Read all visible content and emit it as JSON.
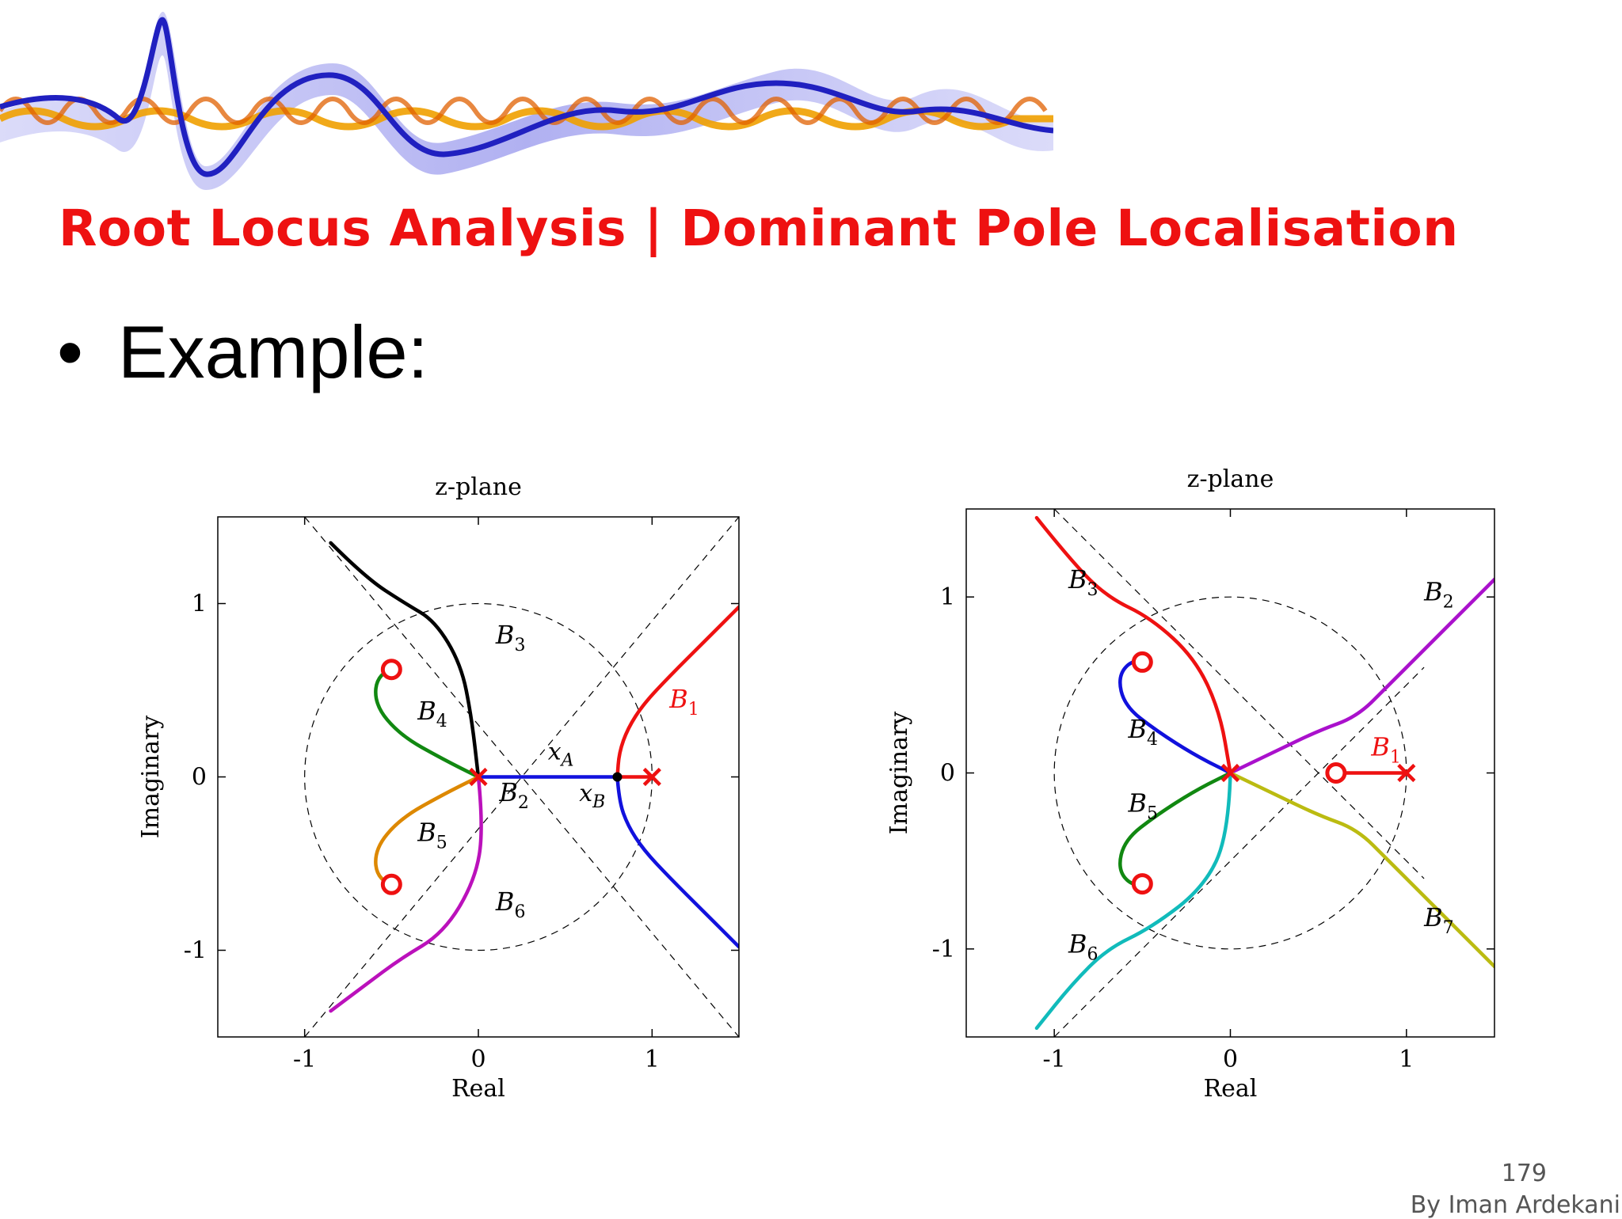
{
  "slide": {
    "title": "Root Locus Analysis | Dominant Pole Localisation",
    "bullet": "Example:",
    "bullet_symbol": "•",
    "page_number": "179",
    "author": "By Iman Ardekani",
    "title_color": "#ee1111",
    "banner_icon": "waveform-banner"
  },
  "chart_data": [
    {
      "type": "line",
      "title": "z-plane",
      "xlabel": "Real",
      "ylabel": "Imaginary",
      "xlim": [
        -1.5,
        1.5
      ],
      "ylim": [
        -1.5,
        1.5
      ],
      "xticks": [
        -1,
        0,
        1
      ],
      "yticks": [
        -1,
        0,
        1
      ],
      "xtick_labels": [
        "-1",
        "0",
        "1"
      ],
      "ytick_labels": [
        "-1",
        "0",
        "1"
      ],
      "unit_circle": true,
      "poles": [
        [
          0,
          0
        ],
        [
          1,
          0
        ]
      ],
      "zeros": [
        [
          -0.5,
          0.62
        ],
        [
          -0.5,
          -0.62
        ]
      ],
      "points": [
        [
          0.8,
          0
        ]
      ],
      "asymptotes": [
        {
          "from": [
            -1.0,
            1.5
          ],
          "to": [
            1.5,
            -1.5
          ]
        },
        {
          "from": [
            -1.0,
            -1.5
          ],
          "to": [
            1.5,
            1.5
          ]
        }
      ],
      "series": [
        {
          "name": "B1",
          "color": "#ee1111",
          "points": [
            [
              1.5,
              0.98
            ],
            [
              1.3,
              0.78
            ],
            [
              1.1,
              0.58
            ],
            [
              0.95,
              0.42
            ],
            [
              0.86,
              0.28
            ],
            [
              0.81,
              0.14
            ],
            [
              0.8,
              0
            ]
          ]
        },
        {
          "name": "B1",
          "color": "#ee1111",
          "points": [
            [
              0.8,
              0
            ],
            [
              1.0,
              0
            ]
          ]
        },
        {
          "name": "B2",
          "color": "#1111dd",
          "points": [
            [
              0,
              0
            ],
            [
              0.8,
              0
            ]
          ]
        },
        {
          "name": "",
          "color": "#1111dd",
          "points": [
            [
              0.8,
              0
            ],
            [
              0.81,
              -0.14
            ],
            [
              0.86,
              -0.28
            ],
            [
              0.95,
              -0.42
            ],
            [
              1.1,
              -0.58
            ],
            [
              1.3,
              -0.78
            ],
            [
              1.5,
              -0.98
            ]
          ]
        },
        {
          "name": "B3",
          "color": "#000000",
          "points": [
            [
              -0.85,
              1.35
            ],
            [
              -0.65,
              1.15
            ],
            [
              -0.42,
              1.0
            ],
            [
              -0.25,
              0.9
            ],
            [
              -0.1,
              0.65
            ],
            [
              -0.04,
              0.35
            ],
            [
              0,
              0
            ]
          ]
        },
        {
          "name": "B4",
          "color": "#118811",
          "points": [
            [
              -0.48,
              0.63
            ],
            [
              -0.58,
              0.6
            ],
            [
              -0.6,
              0.42
            ],
            [
              -0.45,
              0.24
            ],
            [
              -0.2,
              0.1
            ],
            [
              0,
              0
            ]
          ]
        },
        {
          "name": "B5",
          "color": "#dd8800",
          "points": [
            [
              -0.48,
              -0.63
            ],
            [
              -0.58,
              -0.6
            ],
            [
              -0.6,
              -0.42
            ],
            [
              -0.45,
              -0.24
            ],
            [
              -0.2,
              -0.1
            ],
            [
              0,
              0
            ]
          ]
        },
        {
          "name": "B6",
          "color": "#bb11bb",
          "points": [
            [
              0,
              0
            ],
            [
              0.03,
              -0.3
            ],
            [
              -0.02,
              -0.6
            ],
            [
              -0.2,
              -0.9
            ],
            [
              -0.45,
              -1.05
            ],
            [
              -0.65,
              -1.2
            ],
            [
              -0.85,
              -1.35
            ]
          ]
        }
      ],
      "annotations": [
        "x",
        "A",
        "x",
        "B"
      ],
      "branch_labels": [
        {
          "text": "B",
          "sub": "3",
          "x": 0.1,
          "y": 0.77,
          "color": "#000000"
        },
        {
          "text": "B",
          "sub": "4",
          "x": -0.35,
          "y": 0.33,
          "color": "#000000"
        },
        {
          "text": "B",
          "sub": "2",
          "x": 0.12,
          "y": -0.14,
          "color": "#000000"
        },
        {
          "text": "B",
          "sub": "5",
          "x": -0.35,
          "y": -0.37,
          "color": "#000000"
        },
        {
          "text": "B",
          "sub": "6",
          "x": 0.1,
          "y": -0.77,
          "color": "#000000"
        },
        {
          "text": "B",
          "sub": "1",
          "x": 1.1,
          "y": 0.4,
          "color": "#ee1111"
        }
      ],
      "grid": false
    },
    {
      "type": "line",
      "title": "z-plane",
      "xlabel": "Real",
      "ylabel": "Imaginary",
      "xlim": [
        -1.5,
        1.5
      ],
      "ylim": [
        -1.5,
        1.5
      ],
      "xticks": [
        -1,
        0,
        1
      ],
      "yticks": [
        -1,
        0,
        1
      ],
      "xtick_labels": [
        "-1",
        "0",
        "1"
      ],
      "ytick_labels": [
        "-1",
        "0",
        "1"
      ],
      "unit_circle": true,
      "poles": [
        [
          0,
          0
        ],
        [
          1,
          0
        ]
      ],
      "zeros": [
        [
          -0.5,
          0.63
        ],
        [
          -0.5,
          -0.63
        ],
        [
          0.6,
          0
        ]
      ],
      "points": [],
      "asymptotes": [
        {
          "from": [
            -1.0,
            1.5
          ],
          "to": [
            1.1,
            -0.6
          ]
        },
        {
          "from": [
            -1.0,
            -1.5
          ],
          "to": [
            1.1,
            0.6
          ]
        }
      ],
      "series": [
        {
          "name": "B1",
          "color": "#ee1111",
          "points": [
            [
              0.6,
              0
            ],
            [
              1.0,
              0
            ]
          ]
        },
        {
          "name": "B2",
          "color": "#aa11cc",
          "points": [
            [
              0,
              0
            ],
            [
              0.25,
              0.12
            ],
            [
              0.5,
              0.24
            ],
            [
              0.72,
              0.32
            ],
            [
              0.9,
              0.5
            ],
            [
              1.1,
              0.7
            ],
            [
              1.3,
              0.9
            ],
            [
              1.5,
              1.1
            ]
          ]
        },
        {
          "name": "B3",
          "color": "#ee1111",
          "points": [
            [
              -1.1,
              1.45
            ],
            [
              -0.9,
              1.2
            ],
            [
              -0.7,
              1.0
            ],
            [
              -0.45,
              0.88
            ],
            [
              -0.2,
              0.65
            ],
            [
              -0.06,
              0.35
            ],
            [
              0,
              0
            ]
          ]
        },
        {
          "name": "B4",
          "color": "#1111dd",
          "points": [
            [
              -0.48,
              0.63
            ],
            [
              -0.55,
              0.65
            ],
            [
              -0.64,
              0.55
            ],
            [
              -0.6,
              0.38
            ],
            [
              -0.42,
              0.24
            ],
            [
              -0.2,
              0.1
            ],
            [
              0,
              0
            ]
          ]
        },
        {
          "name": "B5",
          "color": "#118811",
          "points": [
            [
              -0.48,
              -0.63
            ],
            [
              -0.55,
              -0.65
            ],
            [
              -0.64,
              -0.55
            ],
            [
              -0.6,
              -0.38
            ],
            [
              -0.42,
              -0.24
            ],
            [
              -0.2,
              -0.1
            ],
            [
              0,
              0
            ]
          ]
        },
        {
          "name": "B6",
          "color": "#11bbbb",
          "points": [
            [
              0,
              0
            ],
            [
              -0.01,
              -0.35
            ],
            [
              -0.15,
              -0.65
            ],
            [
              -0.45,
              -0.88
            ],
            [
              -0.7,
              -1.0
            ],
            [
              -0.9,
              -1.2
            ],
            [
              -1.1,
              -1.45
            ]
          ]
        },
        {
          "name": "B7",
          "color": "#bbbb11",
          "points": [
            [
              0,
              0
            ],
            [
              0.25,
              -0.12
            ],
            [
              0.5,
              -0.24
            ],
            [
              0.72,
              -0.32
            ],
            [
              0.9,
              -0.5
            ],
            [
              1.1,
              -0.7
            ],
            [
              1.3,
              -0.9
            ],
            [
              1.5,
              -1.1
            ]
          ]
        }
      ],
      "annotations": [],
      "branch_labels": [
        {
          "text": "B",
          "sub": "3",
          "x": -0.92,
          "y": 1.05,
          "color": "#000000"
        },
        {
          "text": "B",
          "sub": "2",
          "x": 1.1,
          "y": 0.98,
          "color": "#000000"
        },
        {
          "text": "B",
          "sub": "4",
          "x": -0.58,
          "y": 0.2,
          "color": "#000000"
        },
        {
          "text": "B",
          "sub": "1",
          "x": 0.8,
          "y": 0.1,
          "color": "#ee1111"
        },
        {
          "text": "B",
          "sub": "5",
          "x": -0.58,
          "y": -0.22,
          "color": "#000000"
        },
        {
          "text": "B",
          "sub": "7",
          "x": 1.1,
          "y": -0.87,
          "color": "#000000"
        },
        {
          "text": "B",
          "sub": "6",
          "x": -0.92,
          "y": -1.02,
          "color": "#000000"
        }
      ],
      "grid": false
    }
  ]
}
